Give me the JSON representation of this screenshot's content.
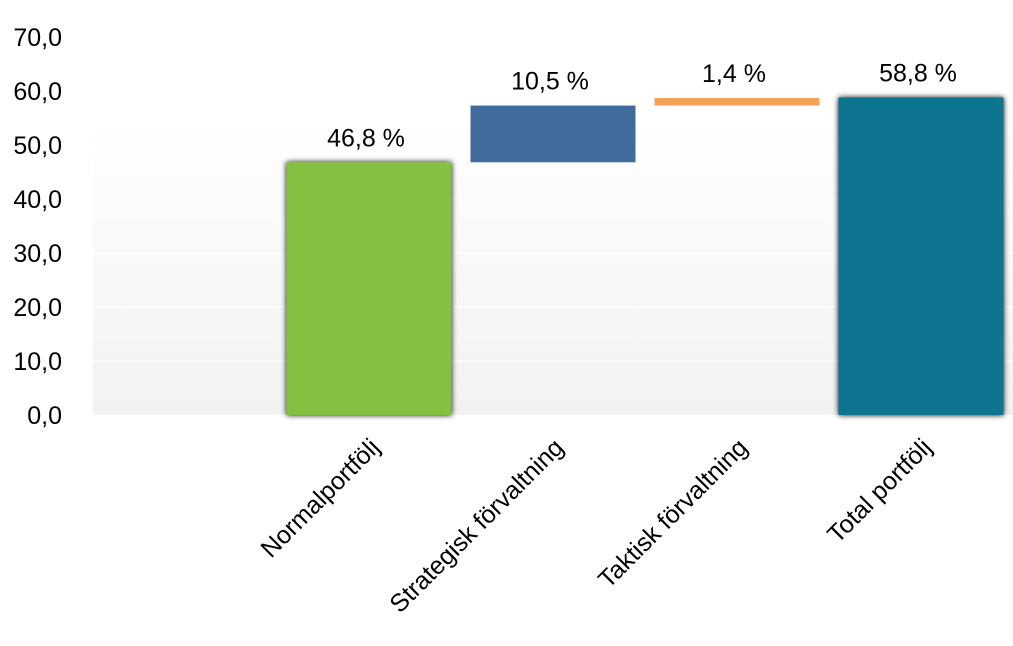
{
  "chart_data": {
    "type": "bar",
    "subtype": "waterfall",
    "categories": [
      "Normalportfölj",
      "Strategisk förvaltning",
      "Taktisk förvaltning",
      "Total portfölj"
    ],
    "values": [
      46.8,
      10.5,
      1.4,
      58.8
    ],
    "bases": [
      0,
      46.8,
      57.3,
      0
    ],
    "data_labels": [
      "46,8 %",
      "10,5 %",
      "1,4 %",
      "58,8 %"
    ],
    "colors": [
      "#86c03f",
      "#416b9d",
      "#f4a15a",
      "#087490"
    ],
    "ylim": [
      0,
      70
    ],
    "yticks": [
      "0,0",
      "10,0",
      "20,0",
      "30,0",
      "40,0",
      "50,0",
      "60,0",
      "70,0"
    ],
    "grid": true,
    "title": "",
    "xlabel": "",
    "ylabel": ""
  }
}
